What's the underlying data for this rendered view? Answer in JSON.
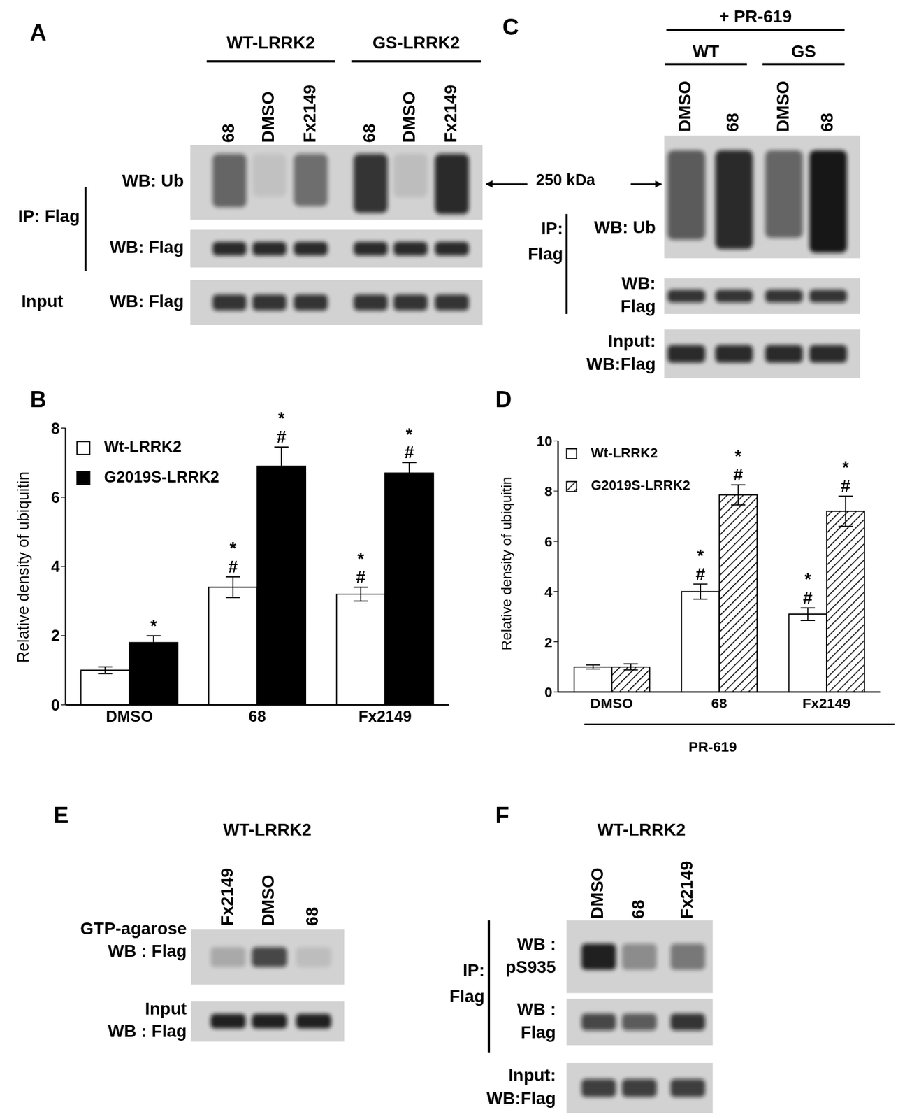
{
  "chart_data": [
    {
      "panel": "B",
      "type": "bar",
      "categories": [
        "DMSO",
        "68",
        "Fx2149"
      ],
      "ylabel": "Relative density of ubiquitin",
      "ylim": [
        0,
        8
      ],
      "yticks": [
        0,
        2,
        4,
        6,
        8
      ],
      "legend": "upper left",
      "series": [
        {
          "name": "Wt-LRRK2",
          "color": "#ffffff",
          "values": [
            1.0,
            3.4,
            3.2
          ],
          "error": [
            0.1,
            0.3,
            0.2
          ],
          "significance": [
            [],
            [
              "*",
              "#"
            ],
            [
              "*",
              "#"
            ]
          ]
        },
        {
          "name": "G2019S-LRRK2",
          "color": "#000000",
          "values": [
            1.8,
            6.9,
            6.7
          ],
          "error": [
            0.2,
            0.55,
            0.3
          ],
          "significance": [
            [
              "*"
            ],
            [
              "*",
              "#"
            ],
            [
              "*",
              "#"
            ]
          ]
        }
      ]
    },
    {
      "panel": "D",
      "type": "bar",
      "categories": [
        "DMSO",
        "68",
        "Fx2149"
      ],
      "xlabel": "PR-619",
      "ylabel": "Relative density of ubiquitin",
      "ylim": [
        0,
        10
      ],
      "yticks": [
        0,
        2,
        4,
        6,
        8,
        10
      ],
      "legend": "upper left",
      "series": [
        {
          "name": "Wt-LRRK2",
          "color": "#ffffff",
          "values": [
            1.0,
            4.0,
            3.1
          ],
          "error": [
            0.08,
            0.3,
            0.25
          ],
          "significance": [
            [],
            [
              "*",
              "#"
            ],
            [
              "*",
              "#"
            ]
          ]
        },
        {
          "name": "G2019S-LRRK2",
          "color": "#000000",
          "values": [
            1.0,
            7.85,
            7.2
          ],
          "error": [
            0.12,
            0.4,
            0.6
          ],
          "significance": [
            [],
            [
              "*",
              "#"
            ],
            [
              "*",
              "#"
            ]
          ]
        }
      ]
    }
  ],
  "blots": [
    {
      "panel": "A",
      "groups": [
        {
          "name": "WT-LRRK2",
          "lanes": [
            "68",
            "DMSO",
            "Fx2149"
          ]
        },
        {
          "name": "GS-LRRK2",
          "lanes": [
            "68",
            "DMSO",
            "Fx2149"
          ]
        }
      ],
      "bracket": [
        "IP: Flag"
      ],
      "rows": [
        {
          "label": [
            "WB: Ub"
          ],
          "bands": [
            0.55,
            0.08,
            0.5,
            0.8,
            0.1,
            0.85
          ]
        },
        {
          "label": [
            "WB: Flag"
          ],
          "bands": [
            0.85,
            0.85,
            0.85,
            0.85,
            0.85,
            0.85
          ]
        },
        {
          "label": [
            "Input",
            "WB: Flag"
          ],
          "bands": [
            0.8,
            0.8,
            0.8,
            0.8,
            0.8,
            0.8
          ]
        }
      ]
    },
    {
      "panel": "C",
      "header": "+ PR-619",
      "groups": [
        {
          "name": "WT",
          "lanes": [
            "DMSO",
            "68"
          ]
        },
        {
          "name": "GS",
          "lanes": [
            "DMSO",
            "68"
          ]
        }
      ],
      "marker_label": "250 kDa",
      "bracket": [
        "IP:",
        "Flag"
      ],
      "rows": [
        {
          "label": [
            "WB: Ub"
          ],
          "bands": [
            0.6,
            0.85,
            0.55,
            0.95
          ]
        },
        {
          "label": [
            "WB:",
            "Flag"
          ],
          "bands": [
            0.8,
            0.8,
            0.8,
            0.8
          ]
        },
        {
          "label": [
            "Input:",
            "WB:Flag"
          ],
          "bands": [
            0.85,
            0.85,
            0.85,
            0.85
          ]
        }
      ]
    },
    {
      "panel": "E",
      "title": "WT-LRRK2",
      "lanes": [
        "Fx2149",
        "DMSO",
        "68"
      ],
      "rows": [
        {
          "label": [
            "GTP-agarose",
            "WB : Flag"
          ],
          "bands": [
            0.2,
            0.7,
            0.1
          ]
        },
        {
          "label": [
            "Input",
            "WB : Flag"
          ],
          "bands": [
            0.9,
            0.9,
            0.9
          ]
        }
      ]
    },
    {
      "panel": "F",
      "title": "WT-LRRK2",
      "lanes": [
        "DMSO",
        "68",
        "Fx2149"
      ],
      "bracket": [
        "IP:",
        "Flag"
      ],
      "rows": [
        {
          "label": [
            "WB :",
            "pS935"
          ],
          "bands": [
            0.9,
            0.35,
            0.45
          ]
        },
        {
          "label": [
            "WB :",
            "Flag"
          ],
          "bands": [
            0.7,
            0.6,
            0.8
          ]
        },
        {
          "label": [
            "Input:",
            "WB:Flag"
          ],
          "bands": [
            0.75,
            0.75,
            0.75
          ]
        }
      ]
    }
  ]
}
